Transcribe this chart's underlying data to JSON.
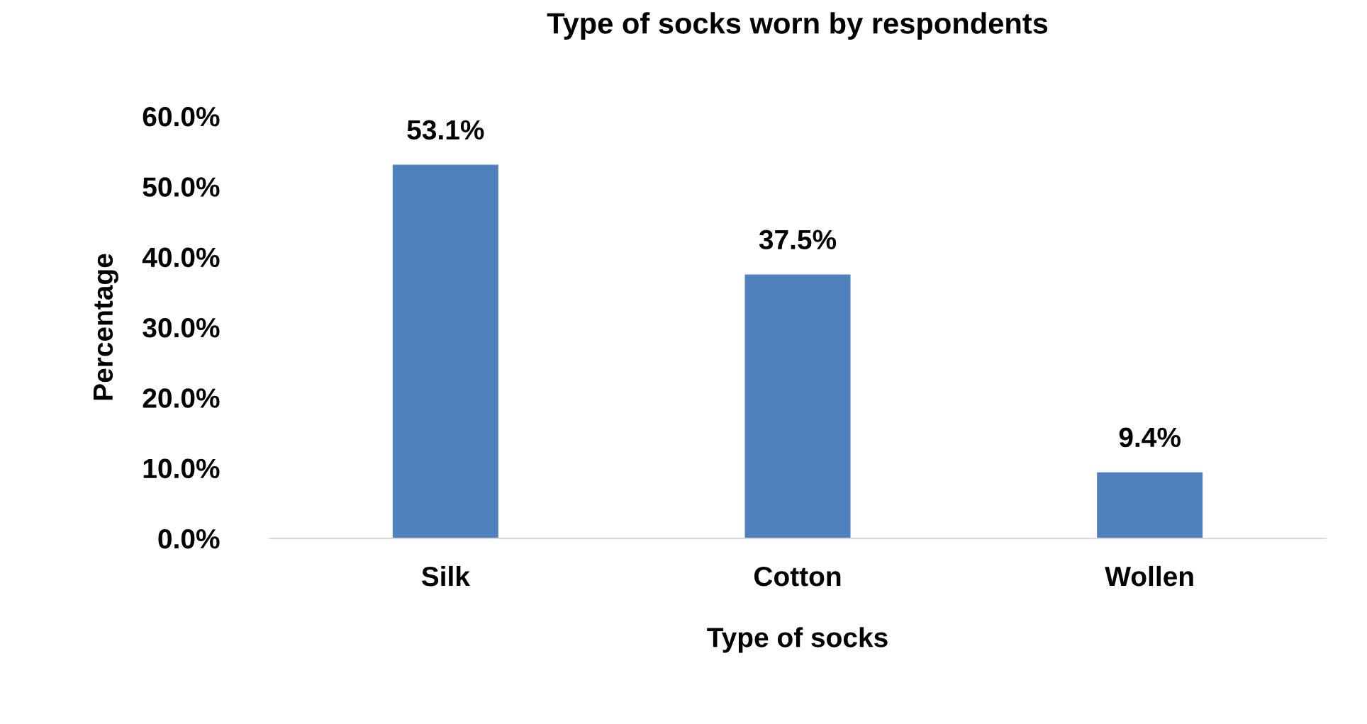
{
  "chart_data": {
    "type": "bar",
    "title": "Type of socks worn by respondents",
    "xlabel": "Type of socks",
    "ylabel": "Percentage",
    "categories": [
      "Silk",
      "Cotton",
      "Wollen"
    ],
    "values": [
      53.1,
      37.5,
      9.4
    ],
    "value_labels": [
      "53.1%",
      "37.5%",
      "9.4%"
    ],
    "color": "#4f81bd",
    "ylim": [
      0,
      60
    ],
    "yticks": [
      {
        "value": 0,
        "label": "0.0%"
      },
      {
        "value": 10,
        "label": "10.0%"
      },
      {
        "value": 20,
        "label": "20.0%"
      },
      {
        "value": 30,
        "label": "30.0%"
      },
      {
        "value": 40,
        "label": "40.0%"
      },
      {
        "value": 50,
        "label": "50.0%"
      },
      {
        "value": 60,
        "label": "60.0%"
      }
    ],
    "grid": false,
    "legend": false
  }
}
